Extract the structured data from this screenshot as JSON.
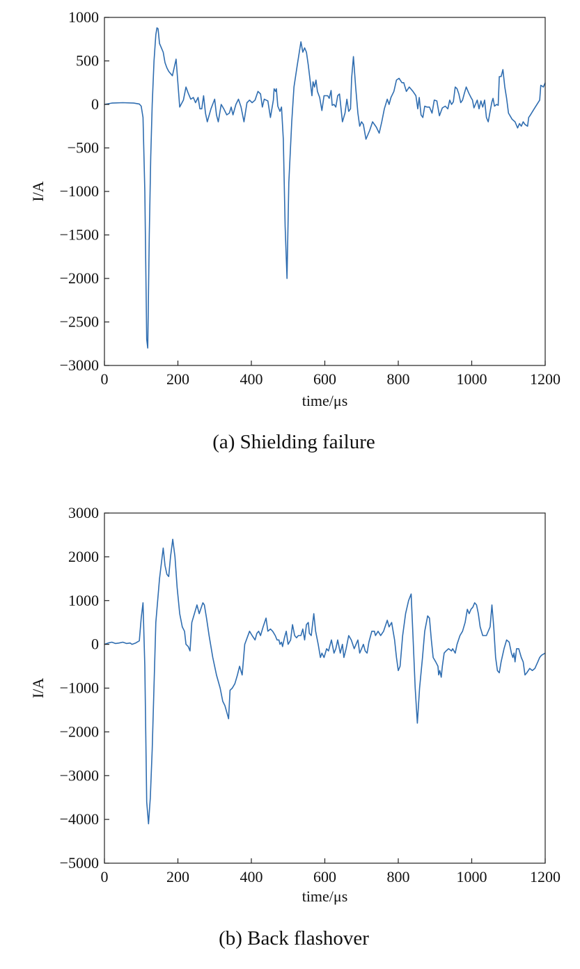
{
  "chart_data": [
    {
      "type": "line",
      "caption": "(a) Shielding failure",
      "xlabel": "time/μs",
      "ylabel": "I/A",
      "color": "#2f6db0",
      "xlim": [
        0,
        1200
      ],
      "xticks": [
        0,
        200,
        400,
        600,
        800,
        1000,
        1200
      ],
      "ylim": [
        -3000,
        1000
      ],
      "yticks": [
        {
          "value": -3000,
          "label": "−3000"
        },
        {
          "value": -2500,
          "label": "−2500"
        },
        {
          "value": -2000,
          "label": "−2000"
        },
        {
          "value": -1500,
          "label": "−1500"
        },
        {
          "value": -1000,
          "label": "−1000"
        },
        {
          "value": -500,
          "label": "−500"
        },
        0,
        500,
        1000
      ],
      "x": [
        0,
        20,
        50,
        80,
        95,
        100,
        105,
        110,
        115,
        118,
        122,
        126,
        130,
        135,
        140,
        143,
        146,
        150,
        155,
        160,
        165,
        170,
        175,
        185,
        195,
        205,
        215,
        222,
        228,
        235,
        242,
        248,
        255,
        260,
        265,
        270,
        275,
        280,
        290,
        300,
        305,
        310,
        318,
        325,
        333,
        340,
        345,
        350,
        358,
        365,
        372,
        380,
        388,
        395,
        402,
        410,
        418,
        425,
        430,
        435,
        445,
        452,
        460,
        462,
        466,
        468,
        472,
        478,
        482,
        487,
        492,
        497,
        502,
        510,
        516,
        525,
        535,
        540,
        545,
        550,
        555,
        562,
        565,
        568,
        572,
        576,
        580,
        586,
        592,
        598,
        602,
        608,
        612,
        617,
        620,
        625,
        630,
        635,
        640,
        648,
        655,
        660,
        665,
        670,
        673,
        678,
        684,
        690,
        695,
        700,
        705,
        712,
        722,
        730,
        740,
        748,
        755,
        762,
        770,
        775,
        780,
        788,
        795,
        802,
        810,
        815,
        822,
        830,
        840,
        848,
        853,
        857,
        862,
        867,
        872,
        878,
        885,
        892,
        898,
        905,
        912,
        920,
        928,
        935,
        940,
        945,
        950,
        955,
        960,
        965,
        970,
        975,
        980,
        985,
        992,
        998,
        1002,
        1006,
        1010,
        1015,
        1020,
        1025,
        1030,
        1035,
        1040,
        1045,
        1050,
        1055,
        1058,
        1062,
        1068,
        1072,
        1075,
        1080,
        1085,
        1090,
        1095,
        1100,
        1110,
        1118,
        1125,
        1130,
        1135,
        1140,
        1145,
        1152,
        1155,
        1160,
        1170,
        1185,
        1188,
        1195,
        1200
      ],
      "values": [
        0,
        15,
        20,
        15,
        5,
        -20,
        -150,
        -1000,
        -2700,
        -2800,
        -1500,
        -600,
        0,
        500,
        800,
        880,
        870,
        700,
        650,
        600,
        480,
        420,
        380,
        330,
        520,
        -30,
        50,
        200,
        130,
        60,
        80,
        20,
        80,
        -50,
        -50,
        100,
        -100,
        -200,
        -50,
        60,
        -120,
        -200,
        0,
        -50,
        -120,
        -100,
        -30,
        -120,
        0,
        60,
        -30,
        -200,
        20,
        50,
        20,
        50,
        150,
        120,
        -30,
        60,
        40,
        -150,
        50,
        180,
        150,
        180,
        -20,
        -80,
        -30,
        -400,
        -1400,
        -2000,
        -900,
        -200,
        200,
        450,
        720,
        600,
        650,
        600,
        450,
        200,
        100,
        260,
        200,
        280,
        150,
        80,
        -70,
        100,
        100,
        100,
        70,
        160,
        -10,
        0,
        -30,
        100,
        120,
        -200,
        -100,
        60,
        -80,
        -50,
        300,
        550,
        200,
        -100,
        -250,
        -200,
        -230,
        -400,
        -300,
        -200,
        -260,
        -330,
        -200,
        -50,
        60,
        0,
        80,
        150,
        280,
        300,
        250,
        250,
        150,
        200,
        150,
        100,
        -50,
        80,
        -120,
        -150,
        -20,
        -30,
        -30,
        -100,
        50,
        40,
        -130,
        -40,
        -20,
        -50,
        50,
        0,
        30,
        200,
        180,
        120,
        20,
        50,
        130,
        200,
        130,
        80,
        50,
        -40,
        0,
        50,
        -50,
        40,
        -30,
        50,
        -150,
        -200,
        -80,
        30,
        70,
        -20,
        0,
        -10,
        320,
        320,
        400,
        200,
        70,
        -100,
        -170,
        -200,
        -270,
        -220,
        -250,
        -200,
        -230,
        -250,
        -150,
        -120,
        -50,
        50,
        220,
        200,
        250
      ]
    },
    {
      "type": "line",
      "caption": "(b) Back flashover",
      "xlabel": "time/μs",
      "ylabel": "I/A",
      "color": "#2f6db0",
      "xlim": [
        0,
        1200
      ],
      "xticks": [
        0,
        200,
        400,
        600,
        800,
        1000,
        1200
      ],
      "ylim": [
        -5000,
        3000
      ],
      "yticks": [
        {
          "value": -5000,
          "label": "−5000"
        },
        {
          "value": -4000,
          "label": "−4000"
        },
        {
          "value": -3000,
          "label": "−3000"
        },
        {
          "value": -2000,
          "label": "−2000"
        },
        {
          "value": -1000,
          "label": "−1000"
        },
        0,
        1000,
        2000,
        3000
      ],
      "x": [
        0,
        10,
        20,
        30,
        40,
        50,
        60,
        70,
        75,
        85,
        95,
        100,
        105,
        110,
        115,
        120,
        125,
        130,
        140,
        150,
        160,
        165,
        170,
        175,
        180,
        186,
        192,
        198,
        205,
        212,
        218,
        222,
        228,
        233,
        238,
        245,
        252,
        258,
        262,
        268,
        272,
        278,
        285,
        295,
        305,
        315,
        322,
        328,
        333,
        338,
        342,
        348,
        355,
        362,
        368,
        375,
        382,
        395,
        402,
        410,
        415,
        420,
        425,
        432,
        440,
        445,
        452,
        458,
        465,
        470,
        475,
        478,
        482,
        485,
        490,
        495,
        500,
        507,
        512,
        518,
        523,
        528,
        535,
        540,
        545,
        550,
        555,
        558,
        563,
        570,
        575,
        582,
        588,
        592,
        598,
        605,
        610,
        618,
        625,
        630,
        635,
        642,
        648,
        652,
        658,
        665,
        672,
        680,
        690,
        695,
        700,
        705,
        710,
        715,
        720,
        728,
        735,
        738,
        745,
        752,
        760,
        770,
        775,
        782,
        790,
        795,
        800,
        805,
        812,
        820,
        828,
        835,
        840,
        846,
        852,
        858,
        866,
        872,
        880,
        885,
        890,
        895,
        902,
        908,
        910,
        913,
        917,
        920,
        925,
        930,
        937,
        945,
        948,
        955,
        960,
        968,
        975,
        982,
        988,
        993,
        998,
        1003,
        1008,
        1013,
        1018,
        1023,
        1030,
        1040,
        1050,
        1055,
        1060,
        1065,
        1070,
        1075,
        1080,
        1088,
        1095,
        1102,
        1108,
        1112,
        1115,
        1118,
        1122,
        1128,
        1135,
        1140,
        1145,
        1150,
        1158,
        1165,
        1172,
        1180,
        1185,
        1190,
        1200
      ],
      "values": [
        0,
        30,
        50,
        20,
        30,
        50,
        20,
        30,
        0,
        30,
        80,
        600,
        950,
        -500,
        -3600,
        -4100,
        -3500,
        -2400,
        500,
        1500,
        2200,
        1800,
        1600,
        1550,
        2000,
        2400,
        2000,
        1300,
        700,
        400,
        300,
        0,
        -50,
        -150,
        500,
        700,
        900,
        700,
        800,
        950,
        900,
        600,
        200,
        -300,
        -700,
        -1000,
        -1300,
        -1400,
        -1550,
        -1700,
        -1050,
        -1000,
        -900,
        -700,
        -500,
        -700,
        0,
        300,
        200,
        100,
        250,
        300,
        200,
        400,
        600,
        300,
        350,
        300,
        200,
        100,
        100,
        0,
        50,
        -50,
        150,
        300,
        0,
        100,
        450,
        200,
        150,
        200,
        200,
        350,
        100,
        450,
        500,
        250,
        200,
        700,
        300,
        0,
        -300,
        -200,
        -300,
        -100,
        -150,
        100,
        -200,
        -100,
        100,
        -200,
        0,
        -300,
        -100,
        200,
        100,
        -100,
        100,
        -200,
        -100,
        0,
        -150,
        -200,
        50,
        300,
        300,
        200,
        300,
        200,
        300,
        550,
        400,
        500,
        100,
        -300,
        -600,
        -500,
        200,
        700,
        1000,
        1150,
        200,
        -1000,
        -1800,
        -1000,
        -300,
        300,
        650,
        600,
        100,
        -300,
        -400,
        -500,
        -700,
        -600,
        -750,
        -500,
        -200,
        -150,
        -100,
        -150,
        -100,
        -200,
        0,
        200,
        300,
        500,
        800,
        700,
        800,
        850,
        950,
        900,
        700,
        400,
        200,
        200,
        400,
        900,
        400,
        -300,
        -600,
        -650,
        -400,
        -100,
        100,
        50,
        -200,
        -300,
        -200,
        -400,
        -100,
        -100,
        -300,
        -400,
        -700,
        -650,
        -550,
        -600,
        -550,
        -400,
        -300,
        -250,
        -200
      ]
    }
  ]
}
